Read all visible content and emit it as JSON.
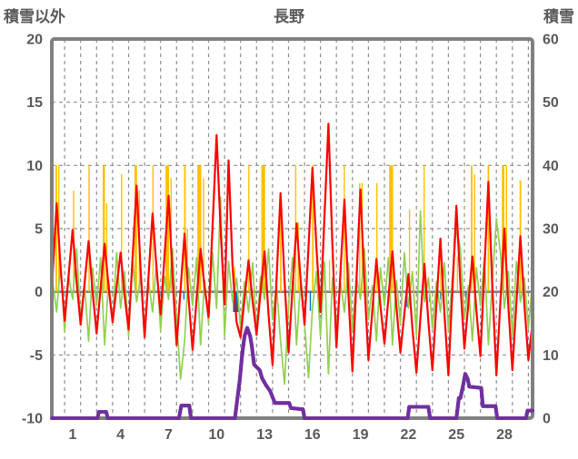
{
  "header": {
    "left_axis_title": "積雪以外",
    "chart_title": "長野",
    "right_axis_title": "積雪"
  },
  "colors": {
    "border_gray": "#808080",
    "grid_gray": "#8f8f8f",
    "zero_line": "#808080",
    "text_gray": "#595959",
    "orange_bars": "#FFC000",
    "blue_bars": "#0070C0",
    "green_line": "#92D050",
    "red_line": "#FF0000",
    "purple_line": "#7030A0"
  },
  "chart_data": {
    "type": "line",
    "title": "長野",
    "x_axis": {
      "domain": [
        0,
        30.06
      ],
      "labels": [
        1,
        4,
        7,
        10,
        13,
        16,
        19,
        22,
        25,
        28
      ],
      "label_offset_days": 0.3,
      "gridlines_at": "every day boundary (u = 0.8 + k, k = 0..29)",
      "days_shown": 30
    },
    "left_axis": {
      "title": "積雪以外",
      "min": -10,
      "max": 20,
      "ticks": [
        20,
        15,
        10,
        5,
        0,
        -5,
        -10
      ],
      "dashed_grid_values": [
        15,
        10,
        5,
        -5
      ],
      "zero_line_value": 0
    },
    "right_axis": {
      "title": "積雪",
      "min": 0,
      "max": 60,
      "ticks": [
        60,
        50,
        40,
        30,
        20,
        10,
        0
      ]
    },
    "sampling": {
      "u_start": 0.05,
      "dt": 0.25
    },
    "series": [
      {
        "name": "orange_bars_sunshine",
        "type": "bar",
        "axis": "left",
        "color": "#FFC000",
        "bars": [
          [
            0.28,
            0.1,
            10
          ],
          [
            0.42,
            0.05,
            10
          ],
          [
            1.35,
            0.05,
            8
          ],
          [
            2.32,
            0.06,
            10
          ],
          [
            3.25,
            0.14,
            10
          ],
          [
            3.42,
            0.05,
            7
          ],
          [
            4.35,
            0.05,
            9.3
          ],
          [
            5.25,
            0.16,
            10
          ],
          [
            5.46,
            0.06,
            8
          ],
          [
            6.32,
            0.06,
            10
          ],
          [
            7.22,
            0.22,
            10
          ],
          [
            7.46,
            0.08,
            9
          ],
          [
            8.32,
            0.1,
            10
          ],
          [
            8.46,
            0.05,
            5
          ],
          [
            9.22,
            0.25,
            10
          ],
          [
            9.48,
            0.06,
            9
          ],
          [
            10.35,
            0.05,
            2
          ],
          [
            11.42,
            0.05,
            2
          ],
          [
            12.32,
            0.08,
            10
          ],
          [
            13.22,
            0.24,
            10
          ],
          [
            14.32,
            0.1,
            6
          ],
          [
            15.25,
            0.08,
            10
          ],
          [
            15.4,
            0.06,
            5.5
          ],
          [
            16.32,
            0.1,
            10
          ],
          [
            17.35,
            0.05,
            2.5
          ],
          [
            18.28,
            0.07,
            10
          ],
          [
            19.25,
            0.07,
            8.6
          ],
          [
            19.4,
            0.07,
            8.6
          ],
          [
            20.32,
            0.07,
            8.6
          ],
          [
            21.22,
            0.25,
            10
          ],
          [
            22.35,
            0.05,
            6.5
          ],
          [
            23.28,
            0.08,
            10
          ],
          [
            24.32,
            0.07,
            3.5
          ],
          [
            25.35,
            0.06,
            2.8
          ],
          [
            26.25,
            0.1,
            10
          ],
          [
            26.42,
            0.05,
            9.3
          ],
          [
            27.3,
            0.1,
            10
          ],
          [
            28.22,
            0.16,
            10
          ],
          [
            28.42,
            0.06,
            10
          ],
          [
            29.3,
            0.1,
            8.8
          ],
          [
            30.0,
            0.08,
            10
          ]
        ]
      },
      {
        "name": "blue_bars_precipitation",
        "type": "bar",
        "axis": "left",
        "color": "#0070C0",
        "bars": [
          [
            8.25,
            0.06,
            -0.6
          ],
          [
            11.5,
            0.34,
            -1.6
          ],
          [
            16.15,
            0.05,
            -1.5
          ],
          [
            19.0,
            0.05,
            -0.9
          ],
          [
            22.2,
            0.06,
            -1.2
          ],
          [
            23.6,
            0.05,
            -0.8
          ],
          [
            24.3,
            0.04,
            -0.6
          ],
          [
            25.9,
            0.06,
            -0.9
          ]
        ]
      },
      {
        "name": "green_line",
        "type": "line_sampled",
        "axis": "left",
        "color": "#92D050",
        "width": 1.7,
        "values": [
          0.8,
          -1.6,
          2.3,
          -3.1,
          1.2,
          -0.6,
          3.4,
          -2.2,
          0.5,
          -3.9,
          1.9,
          -1.1,
          2.7,
          -4.2,
          0.9,
          -2.5,
          3.1,
          -1.3,
          1.6,
          -3.5,
          2.4,
          -0.8,
          1.1,
          -2.9,
          0.8,
          -1.6,
          2.3,
          -3.1,
          1.2,
          -0.6,
          3.4,
          -2.2,
          -6.9,
          -3.9,
          1.9,
          -1.1,
          2.7,
          -4.2,
          0.9,
          -2.5,
          3.1,
          -1.3,
          7.5,
          -3.5,
          2.4,
          -0.8,
          1.1,
          -2.9,
          0.8,
          -1.6,
          2.3,
          -3.1,
          1.2,
          -0.6,
          3.4,
          -2.2,
          0.5,
          -3.9,
          -7.3,
          -1.1,
          2.7,
          -4.2,
          0.9,
          -2.5,
          -6.8,
          -1.3,
          1.6,
          -3.5,
          2.4,
          -6.5,
          1.1,
          -2.9,
          0.8,
          -1.6,
          2.3,
          -3.1,
          1.2,
          -0.6,
          3.4,
          -2.2,
          0.5,
          -3.9,
          1.9,
          -1.1,
          2.7,
          -4.2,
          0.9,
          -2.5,
          3.1,
          -1.3,
          1.6,
          -3.5,
          6.4,
          -0.8,
          1.1,
          -2.9,
          0.8,
          -1.6,
          2.3,
          -3.1,
          1.2,
          5.0,
          3.4,
          -2.2,
          0.5,
          -3.9,
          1.9,
          -1.1,
          2.7,
          -4.2,
          0.9,
          5.8,
          3.1,
          -1.3,
          1.6,
          -3.5,
          2.4,
          -0.8,
          1.1,
          -2.9,
          0.8
        ]
      },
      {
        "name": "red_line_temperature",
        "type": "line_sampled",
        "axis": "left",
        "color": "#FF0000",
        "width": 2.2,
        "values": [
          1.3,
          7.0,
          1.9,
          -2.3,
          1.3,
          4.9,
          0.8,
          -2.6,
          0.7,
          4.0,
          0.0,
          -3.3,
          0.3,
          3.8,
          0.4,
          -2.4,
          0.4,
          3.1,
          -0.3,
          -3.0,
          2.7,
          8.4,
          1.8,
          -3.6,
          1.3,
          6.2,
          1.8,
          -1.8,
          2.9,
          7.6,
          1.1,
          -4.2,
          0.2,
          4.6,
          -0.5,
          -4.6,
          -0.6,
          3.4,
          0.4,
          -2.0,
          5.2,
          12.4,
          5.0,
          -1.0,
          10.4,
          2.0,
          -2.4,
          -3.6,
          -0.5,
          2.5,
          -0.7,
          -3.4,
          0.0,
          3.2,
          -1.8,
          -5.8,
          1.0,
          7.8,
          0.9,
          -4.8,
          0.3,
          5.4,
          1.0,
          -2.6,
          3.6,
          9.8,
          3.5,
          -1.6,
          5.9,
          13.3,
          3.6,
          -4.4,
          1.5,
          7.3,
          -0.2,
          -6.3,
          0.9,
          8.1,
          0.7,
          -5.4,
          -1.4,
          2.6,
          -1.1,
          -4.1,
          -0.5,
          3.2,
          -1.2,
          -4.8,
          -1.7,
          1.4,
          -2.9,
          -6.4,
          -2.1,
          2.2,
          -2.4,
          -6.2,
          -1.0,
          4.2,
          -1.7,
          -6.6,
          0.1,
          6.8,
          0.6,
          -4.5,
          -0.9,
          2.8,
          -1.5,
          -5.1,
          1.8,
          8.7,
          0.3,
          -6.6,
          -0.8,
          5.0,
          -1.2,
          -6.2,
          -0.9,
          4.4,
          -1.0,
          -5.4,
          -2.5
        ]
      },
      {
        "name": "purple_line_snow_depth",
        "type": "line_points",
        "axis": "right",
        "color": "#7030A0",
        "width": 4,
        "points": [
          [
            0,
            0
          ],
          [
            2.85,
            0
          ],
          [
            2.95,
            1
          ],
          [
            3.4,
            1
          ],
          [
            3.5,
            0
          ],
          [
            7.95,
            0
          ],
          [
            8.1,
            2
          ],
          [
            8.6,
            2
          ],
          [
            8.7,
            0
          ],
          [
            11.45,
            0
          ],
          [
            11.6,
            3
          ],
          [
            11.75,
            6
          ],
          [
            11.9,
            10
          ],
          [
            12.05,
            13
          ],
          [
            12.22,
            14.3
          ],
          [
            12.4,
            13
          ],
          [
            12.5,
            11.5
          ],
          [
            12.65,
            8.5
          ],
          [
            13.0,
            7.6
          ],
          [
            13.15,
            6.3
          ],
          [
            13.4,
            5.2
          ],
          [
            13.65,
            4.3
          ],
          [
            13.95,
            2.4
          ],
          [
            14.85,
            2.4
          ],
          [
            14.95,
            1.6
          ],
          [
            15.7,
            1.4
          ],
          [
            15.8,
            0
          ],
          [
            22.25,
            0
          ],
          [
            22.35,
            1.8
          ],
          [
            23.55,
            1.8
          ],
          [
            23.65,
            0
          ],
          [
            25.3,
            0
          ],
          [
            25.45,
            3.2
          ],
          [
            25.55,
            3.2
          ],
          [
            25.7,
            5
          ],
          [
            25.85,
            7
          ],
          [
            26.0,
            6.2
          ],
          [
            26.1,
            5
          ],
          [
            26.85,
            4.8
          ],
          [
            26.95,
            1.9
          ],
          [
            27.75,
            1.9
          ],
          [
            27.85,
            0
          ],
          [
            29.65,
            0
          ],
          [
            29.75,
            1.2
          ],
          [
            30.06,
            1.2
          ]
        ]
      }
    ]
  }
}
